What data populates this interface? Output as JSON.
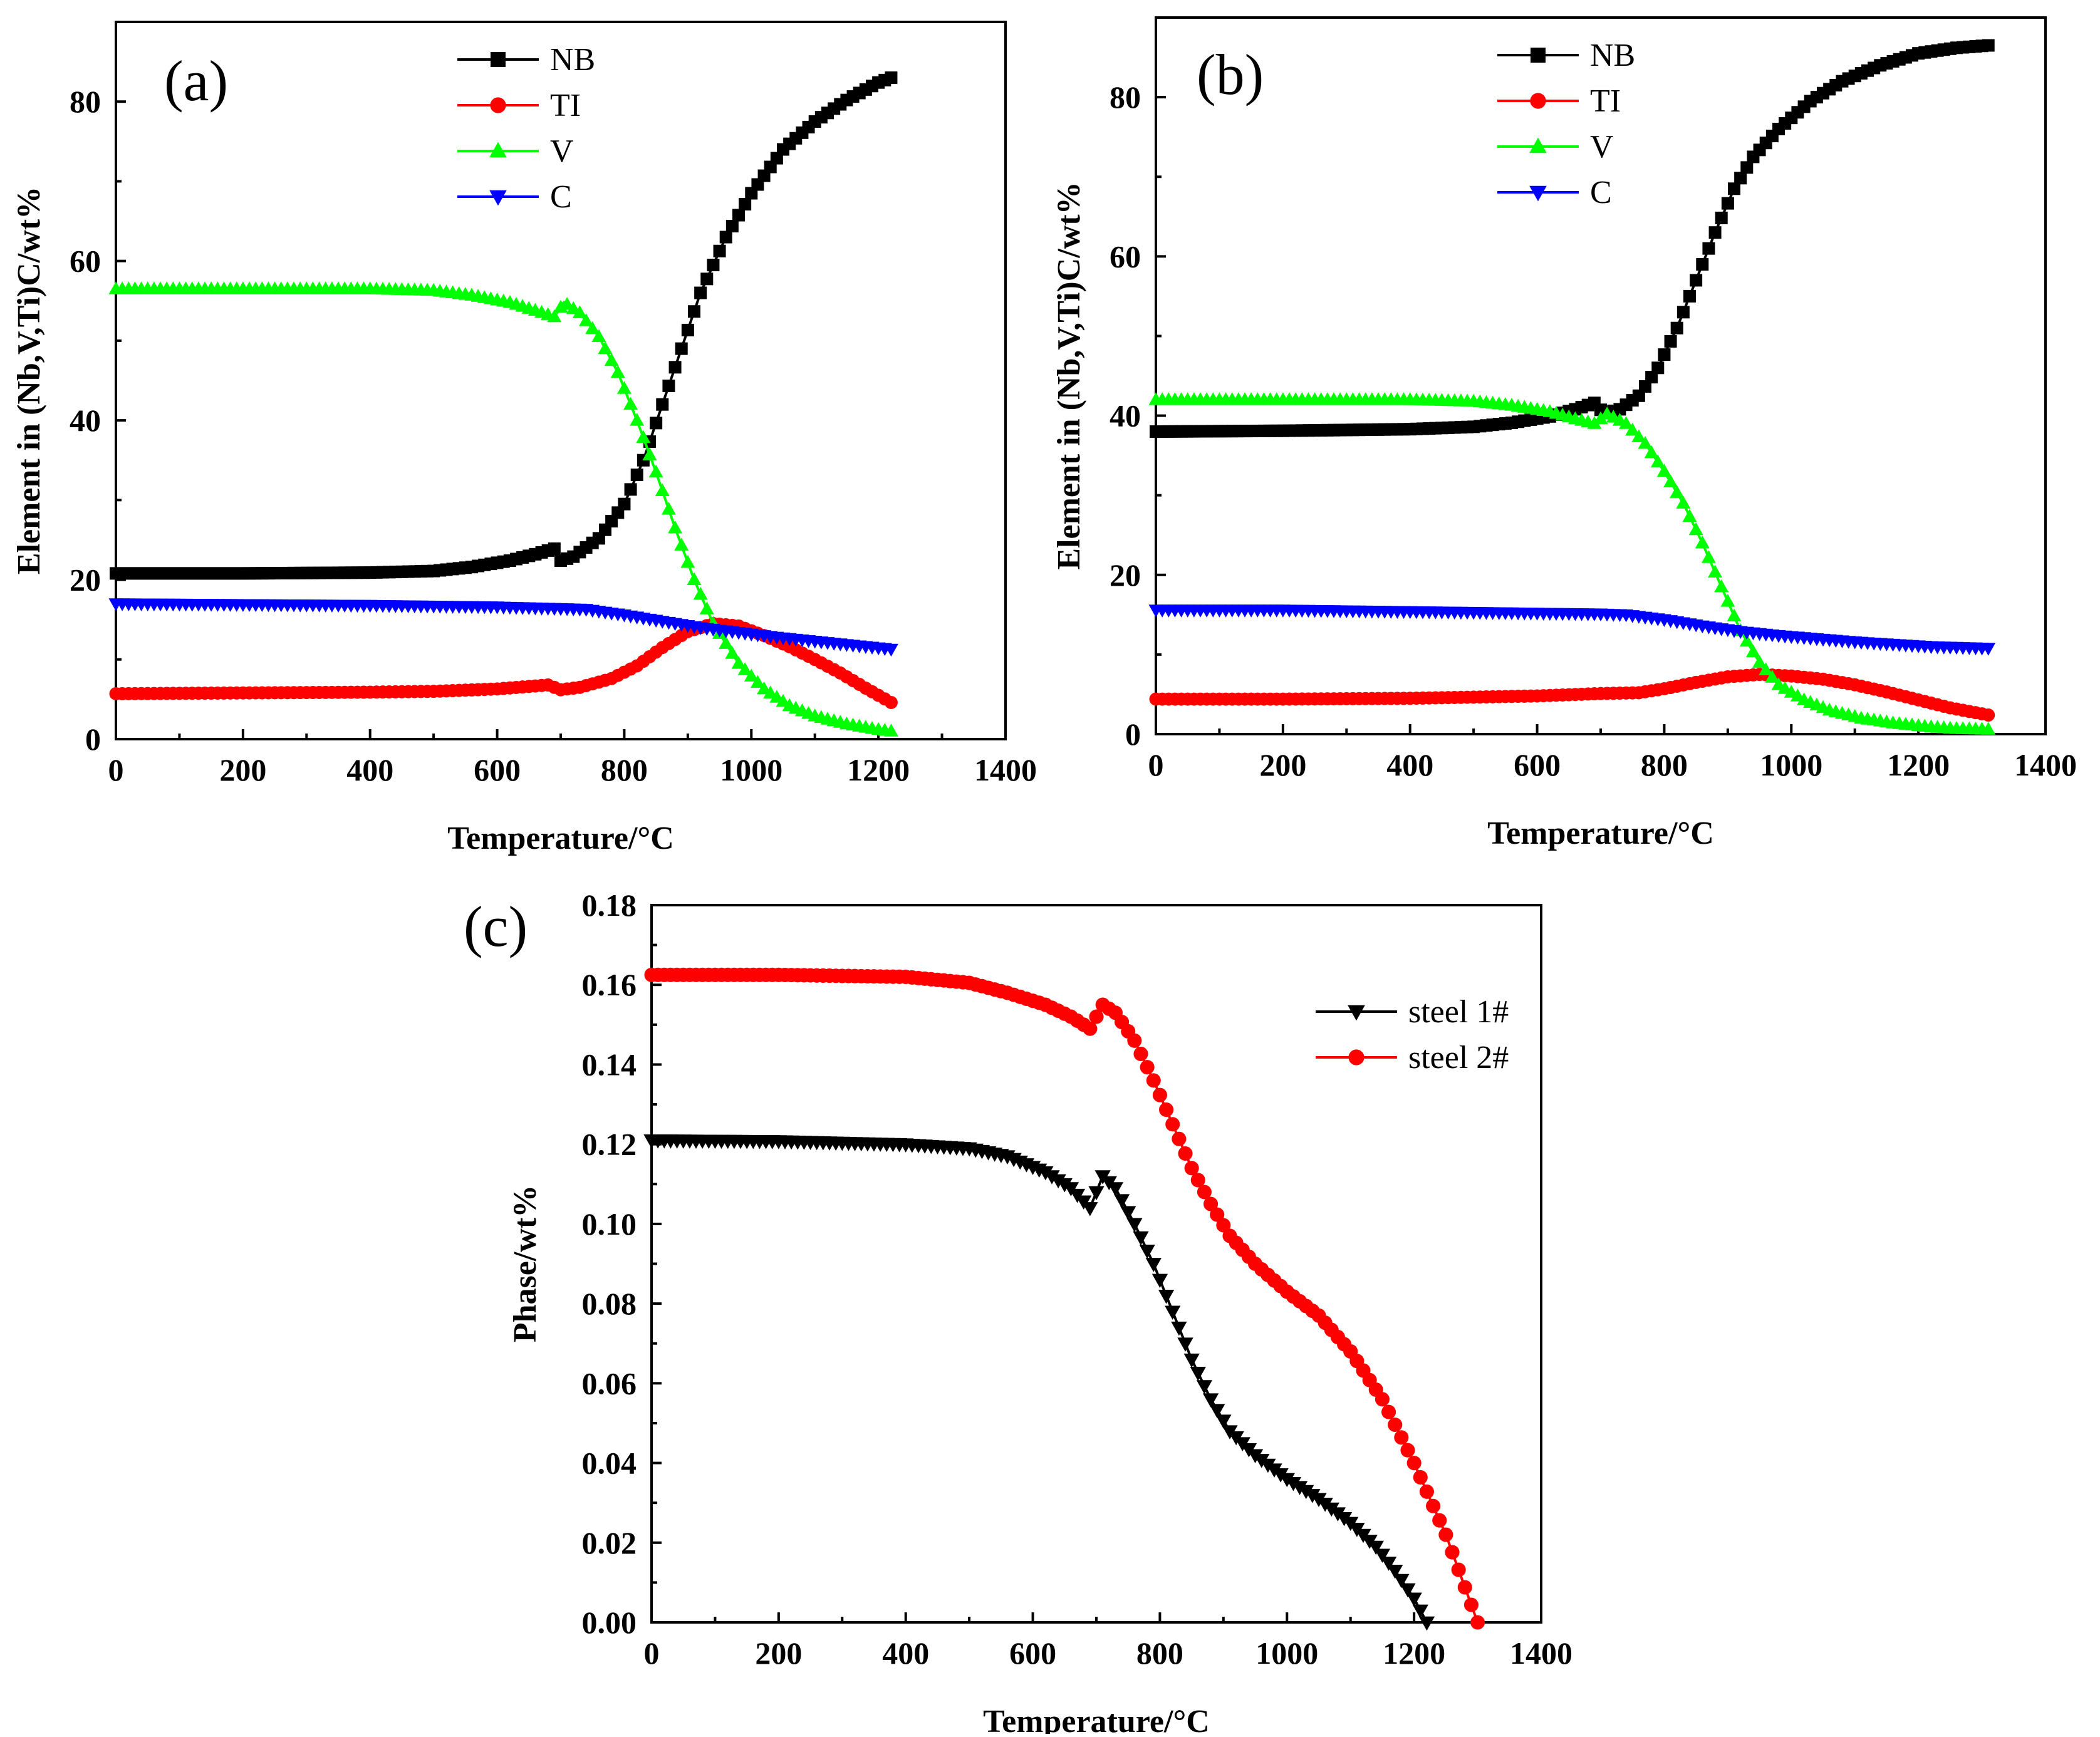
{
  "chart_data": [
    {
      "type": "line",
      "panel_label": "(a)",
      "xlabel": "Temperature/°C",
      "ylabel": "Element in (Nb,V,Ti)C/wt%",
      "xlim": [
        0,
        1400
      ],
      "ylim": [
        0,
        90
      ],
      "xticks": [
        0,
        200,
        400,
        600,
        800,
        1000,
        1200,
        1400
      ],
      "yticks": [
        0,
        20,
        40,
        60,
        80
      ],
      "grid": false,
      "legend": "top-center",
      "series": [
        {
          "name": "NB",
          "color": "#000000",
          "marker": "square",
          "points": [
            [
              0,
              20.8
            ],
            [
              200,
              20.8
            ],
            [
              400,
              20.9
            ],
            [
              500,
              21.1
            ],
            [
              560,
              21.6
            ],
            [
              620,
              22.4
            ],
            [
              660,
              23.2
            ],
            [
              690,
              23.9
            ],
            [
              700,
              22.4
            ],
            [
              720,
              22.9
            ],
            [
              760,
              25.2
            ],
            [
              800,
              29.5
            ],
            [
              830,
              35
            ],
            [
              860,
              42
            ],
            [
              890,
              49
            ],
            [
              920,
              56
            ],
            [
              960,
              63
            ],
            [
              1000,
              68.5
            ],
            [
              1050,
              74
            ],
            [
              1100,
              77.5
            ],
            [
              1150,
              80.2
            ],
            [
              1200,
              82.4
            ],
            [
              1220,
              83
            ]
          ]
        },
        {
          "name": "TI",
          "color": "#ff0000",
          "marker": "circle",
          "points": [
            [
              0,
              5.7
            ],
            [
              200,
              5.8
            ],
            [
              400,
              5.9
            ],
            [
              500,
              6
            ],
            [
              600,
              6.3
            ],
            [
              680,
              6.8
            ],
            [
              700,
              6.2
            ],
            [
              730,
              6.5
            ],
            [
              780,
              7.6
            ],
            [
              820,
              9.2
            ],
            [
              860,
              11.5
            ],
            [
              900,
              13.5
            ],
            [
              940,
              14.5
            ],
            [
              980,
              14.2
            ],
            [
              1020,
              13
            ],
            [
              1060,
              11.6
            ],
            [
              1100,
              10
            ],
            [
              1140,
              8.3
            ],
            [
              1180,
              6.4
            ],
            [
              1220,
              4.6
            ]
          ]
        },
        {
          "name": "V",
          "color": "#00ff00",
          "marker": "triangle-up",
          "points": [
            [
              0,
              56.5
            ],
            [
              200,
              56.5
            ],
            [
              400,
              56.5
            ],
            [
              500,
              56.3
            ],
            [
              560,
              55.7
            ],
            [
              620,
              54.8
            ],
            [
              660,
              53.8
            ],
            [
              690,
              53
            ],
            [
              705,
              54.8
            ],
            [
              730,
              53.5
            ],
            [
              760,
              50.5
            ],
            [
              790,
              46
            ],
            [
              820,
              40
            ],
            [
              850,
              33.5
            ],
            [
              880,
              26.5
            ],
            [
              910,
              20
            ],
            [
              940,
              14.5
            ],
            [
              980,
              9.5
            ],
            [
              1020,
              6.3
            ],
            [
              1060,
              4.2
            ],
            [
              1100,
              2.9
            ],
            [
              1150,
              1.9
            ],
            [
              1200,
              1.2
            ],
            [
              1220,
              1
            ]
          ]
        },
        {
          "name": "C",
          "color": "#0000ff",
          "marker": "triangle-down",
          "points": [
            [
              0,
              17
            ],
            [
              200,
              16.9
            ],
            [
              400,
              16.8
            ],
            [
              600,
              16.6
            ],
            [
              700,
              16.4
            ],
            [
              740,
              16.3
            ],
            [
              800,
              15.6
            ],
            [
              860,
              14.8
            ],
            [
              920,
              14
            ],
            [
              980,
              13.4
            ],
            [
              1040,
              12.8
            ],
            [
              1100,
              12.3
            ],
            [
              1160,
              11.8
            ],
            [
              1220,
              11.3
            ]
          ]
        }
      ]
    },
    {
      "type": "line",
      "panel_label": "(b)",
      "xlabel": "Temperature/°C",
      "ylabel": "Element in (Nb,V,Ti)C/wt%",
      "xlim": [
        0,
        1400
      ],
      "ylim": [
        0,
        90
      ],
      "xticks": [
        0,
        200,
        400,
        600,
        800,
        1000,
        1200,
        1400
      ],
      "yticks": [
        0,
        20,
        40,
        60,
        80
      ],
      "grid": false,
      "legend": "top-center",
      "series": [
        {
          "name": "NB",
          "color": "#000000",
          "marker": "square",
          "points": [
            [
              0,
              38
            ],
            [
              200,
              38.1
            ],
            [
              400,
              38.3
            ],
            [
              500,
              38.6
            ],
            [
              560,
              39.1
            ],
            [
              620,
              39.9
            ],
            [
              660,
              40.8
            ],
            [
              690,
              41.6
            ],
            [
              705,
              40.3
            ],
            [
              730,
              40.8
            ],
            [
              760,
              42.5
            ],
            [
              790,
              46
            ],
            [
              820,
              51
            ],
            [
              850,
              57
            ],
            [
              880,
              63
            ],
            [
              910,
              68.5
            ],
            [
              940,
              72.5
            ],
            [
              980,
              76
            ],
            [
              1030,
              79.5
            ],
            [
              1080,
              82
            ],
            [
              1140,
              84
            ],
            [
              1200,
              85.5
            ],
            [
              1260,
              86.2
            ],
            [
              1310,
              86.5
            ]
          ]
        },
        {
          "name": "TI",
          "color": "#ff0000",
          "marker": "circle",
          "points": [
            [
              0,
              4.4
            ],
            [
              200,
              4.4
            ],
            [
              400,
              4.5
            ],
            [
              600,
              4.8
            ],
            [
              700,
              5.1
            ],
            [
              760,
              5.2
            ],
            [
              800,
              5.7
            ],
            [
              850,
              6.5
            ],
            [
              900,
              7.2
            ],
            [
              950,
              7.5
            ],
            [
              1000,
              7.3
            ],
            [
              1050,
              6.9
            ],
            [
              1100,
              6.2
            ],
            [
              1150,
              5.3
            ],
            [
              1200,
              4.3
            ],
            [
              1250,
              3.3
            ],
            [
              1310,
              2.4
            ]
          ]
        },
        {
          "name": "V",
          "color": "#00ff00",
          "marker": "triangle-up",
          "points": [
            [
              0,
              42
            ],
            [
              200,
              42
            ],
            [
              400,
              42
            ],
            [
              500,
              41.8
            ],
            [
              560,
              41.3
            ],
            [
              620,
              40.5
            ],
            [
              660,
              39.6
            ],
            [
              690,
              39
            ],
            [
              710,
              40.2
            ],
            [
              740,
              39
            ],
            [
              770,
              36.5
            ],
            [
              800,
              33
            ],
            [
              830,
              29
            ],
            [
              860,
              24
            ],
            [
              890,
              18.5
            ],
            [
              920,
              13
            ],
            [
              950,
              9
            ],
            [
              980,
              6.2
            ],
            [
              1020,
              4.3
            ],
            [
              1060,
              3
            ],
            [
              1110,
              2
            ],
            [
              1160,
              1.4
            ],
            [
              1220,
              0.9
            ],
            [
              1260,
              0.7
            ],
            [
              1310,
              0.6
            ]
          ]
        },
        {
          "name": "C",
          "color": "#0000ff",
          "marker": "triangle-down",
          "points": [
            [
              0,
              15.6
            ],
            [
              200,
              15.6
            ],
            [
              400,
              15.4
            ],
            [
              600,
              15.2
            ],
            [
              700,
              15.1
            ],
            [
              740,
              15
            ],
            [
              800,
              14.4
            ],
            [
              860,
              13.6
            ],
            [
              920,
              12.9
            ],
            [
              980,
              12.4
            ],
            [
              1040,
              12
            ],
            [
              1100,
              11.6
            ],
            [
              1160,
              11.3
            ],
            [
              1220,
              11
            ],
            [
              1310,
              10.8
            ]
          ]
        }
      ]
    },
    {
      "type": "line",
      "panel_label": "(c)",
      "xlabel": "Temperature/°C",
      "ylabel": "Phase/wt%",
      "xlim": [
        0,
        1400
      ],
      "ylim": [
        0,
        0.18
      ],
      "xticks": [
        0,
        200,
        400,
        600,
        800,
        1000,
        1200,
        1400
      ],
      "yticks": [
        0.0,
        0.02,
        0.04,
        0.06,
        0.08,
        0.1,
        0.12,
        0.14,
        0.16,
        0.18
      ],
      "grid": false,
      "legend": "right",
      "series": [
        {
          "name": "steel 1#",
          "color": "#000000",
          "marker": "triangle-down",
          "points": [
            [
              0,
              0.121
            ],
            [
              200,
              0.1208
            ],
            [
              400,
              0.12
            ],
            [
              500,
              0.119
            ],
            [
              560,
              0.117
            ],
            [
              620,
              0.113
            ],
            [
              660,
              0.109
            ],
            [
              690,
              0.104
            ],
            [
              710,
              0.112
            ],
            [
              730,
              0.109
            ],
            [
              760,
              0.1
            ],
            [
              790,
              0.09
            ],
            [
              820,
              0.078
            ],
            [
              850,
              0.066
            ],
            [
              880,
              0.056
            ],
            [
              910,
              0.048
            ],
            [
              950,
              0.042
            ],
            [
              1000,
              0.036
            ],
            [
              1050,
              0.031
            ],
            [
              1100,
              0.025
            ],
            [
              1140,
              0.019
            ],
            [
              1170,
              0.013
            ],
            [
              1200,
              0.006
            ],
            [
              1220,
              0.0
            ]
          ]
        },
        {
          "name": "steel 2#",
          "color": "#ff0000",
          "marker": "circle",
          "points": [
            [
              0,
              0.1625
            ],
            [
              200,
              0.1625
            ],
            [
              400,
              0.162
            ],
            [
              500,
              0.1605
            ],
            [
              560,
              0.158
            ],
            [
              620,
              0.155
            ],
            [
              660,
              0.152
            ],
            [
              690,
              0.149
            ],
            [
              710,
              0.155
            ],
            [
              730,
              0.153
            ],
            [
              760,
              0.146
            ],
            [
              790,
              0.136
            ],
            [
              820,
              0.125
            ],
            [
              850,
              0.114
            ],
            [
              880,
              0.105
            ],
            [
              910,
              0.097
            ],
            [
              950,
              0.09
            ],
            [
              1000,
              0.083
            ],
            [
              1050,
              0.077
            ],
            [
              1100,
              0.068
            ],
            [
              1150,
              0.056
            ],
            [
              1200,
              0.04
            ],
            [
              1250,
              0.022
            ],
            [
              1300,
              0.0
            ]
          ]
        }
      ]
    }
  ]
}
